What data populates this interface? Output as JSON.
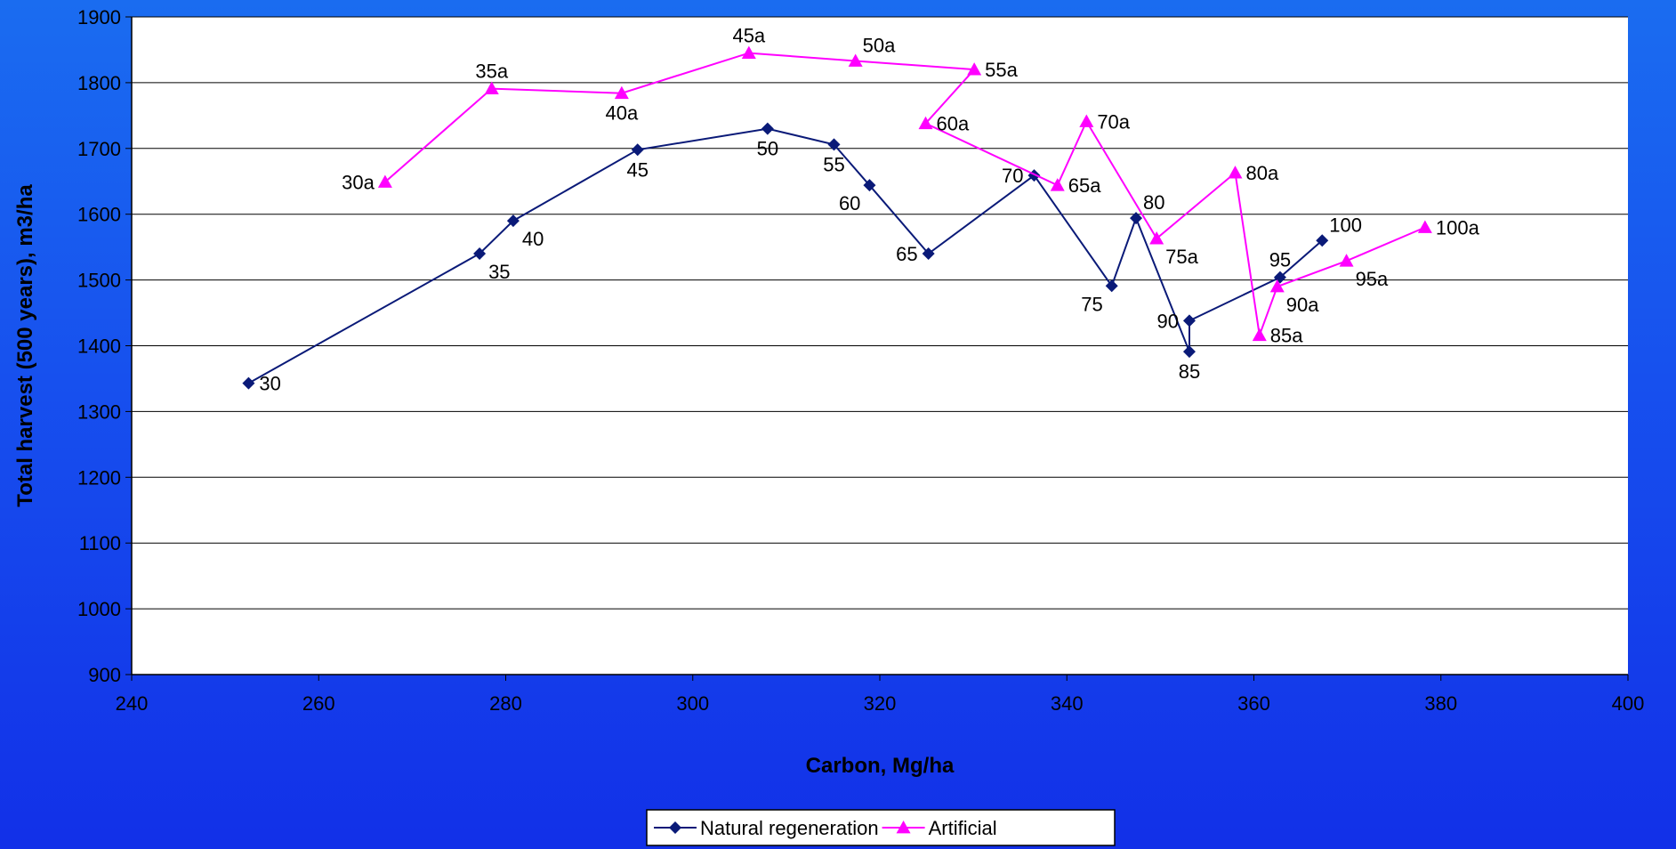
{
  "chart_data": {
    "type": "scatter",
    "xlabel": "Carbon, Mg/ha",
    "ylabel": "Total harvest (500 years), m3/ha",
    "xlim": [
      240,
      400
    ],
    "ylim": [
      900,
      1900
    ],
    "xticks": [
      240,
      260,
      280,
      300,
      320,
      340,
      360,
      380,
      400
    ],
    "yticks": [
      900,
      1000,
      1100,
      1200,
      1300,
      1400,
      1500,
      1600,
      1700,
      1800,
      1900
    ],
    "grid": "horizontal",
    "legend_position": "bottom",
    "series": [
      {
        "name": "Natural regeneration",
        "color": "#0a1a78",
        "marker": "diamond",
        "points": [
          {
            "x": 252.5,
            "y": 1343,
            "label": "30",
            "lpos": "right"
          },
          {
            "x": 277.2,
            "y": 1540,
            "label": "35",
            "lpos": "below-right"
          },
          {
            "x": 280.8,
            "y": 1590,
            "label": "40",
            "lpos": "below-right"
          },
          {
            "x": 294.1,
            "y": 1698,
            "label": "45",
            "lpos": "below"
          },
          {
            "x": 308.0,
            "y": 1730,
            "label": "50",
            "lpos": "below"
          },
          {
            "x": 315.1,
            "y": 1706,
            "label": "55",
            "lpos": "below"
          },
          {
            "x": 318.9,
            "y": 1644,
            "label": "60",
            "lpos": "below-left"
          },
          {
            "x": 325.2,
            "y": 1540,
            "label": "65",
            "lpos": "left"
          },
          {
            "x": 336.5,
            "y": 1659,
            "label": "70",
            "lpos": "left"
          },
          {
            "x": 344.8,
            "y": 1491,
            "label": "75",
            "lpos": "below-left"
          },
          {
            "x": 347.4,
            "y": 1594,
            "label": "80",
            "lpos": "above-right"
          },
          {
            "x": 353.1,
            "y": 1391,
            "label": "85",
            "lpos": "below"
          },
          {
            "x": 353.1,
            "y": 1438,
            "label": "90",
            "lpos": "left"
          },
          {
            "x": 362.8,
            "y": 1504,
            "label": "95",
            "lpos": "above"
          },
          {
            "x": 367.3,
            "y": 1560,
            "label": "100",
            "lpos": "above-right"
          }
        ]
      },
      {
        "name": "Artificial",
        "color": "#ff00ff",
        "marker": "triangle",
        "points": [
          {
            "x": 267.1,
            "y": 1649,
            "label": "30a",
            "lpos": "left"
          },
          {
            "x": 278.5,
            "y": 1791,
            "label": "35a",
            "lpos": "above"
          },
          {
            "x": 292.4,
            "y": 1784,
            "label": "40a",
            "lpos": "below"
          },
          {
            "x": 306.0,
            "y": 1845,
            "label": "45a",
            "lpos": "above"
          },
          {
            "x": 317.4,
            "y": 1833,
            "label": "50a",
            "lpos": "above-right"
          },
          {
            "x": 330.1,
            "y": 1820,
            "label": "55a",
            "lpos": "right"
          },
          {
            "x": 324.9,
            "y": 1738,
            "label": "60a",
            "lpos": "right"
          },
          {
            "x": 339.0,
            "y": 1644,
            "label": "65a",
            "lpos": "right"
          },
          {
            "x": 342.1,
            "y": 1741,
            "label": "70a",
            "lpos": "right"
          },
          {
            "x": 349.6,
            "y": 1563,
            "label": "75a",
            "lpos": "below-right"
          },
          {
            "x": 358.0,
            "y": 1663,
            "label": "80a",
            "lpos": "right"
          },
          {
            "x": 360.6,
            "y": 1416,
            "label": "85a",
            "lpos": "right"
          },
          {
            "x": 362.5,
            "y": 1490,
            "label": "90a",
            "lpos": "below-right"
          },
          {
            "x": 369.9,
            "y": 1529,
            "label": "95a",
            "lpos": "below-right"
          },
          {
            "x": 378.3,
            "y": 1580,
            "label": "100a",
            "lpos": "right"
          }
        ]
      }
    ]
  }
}
